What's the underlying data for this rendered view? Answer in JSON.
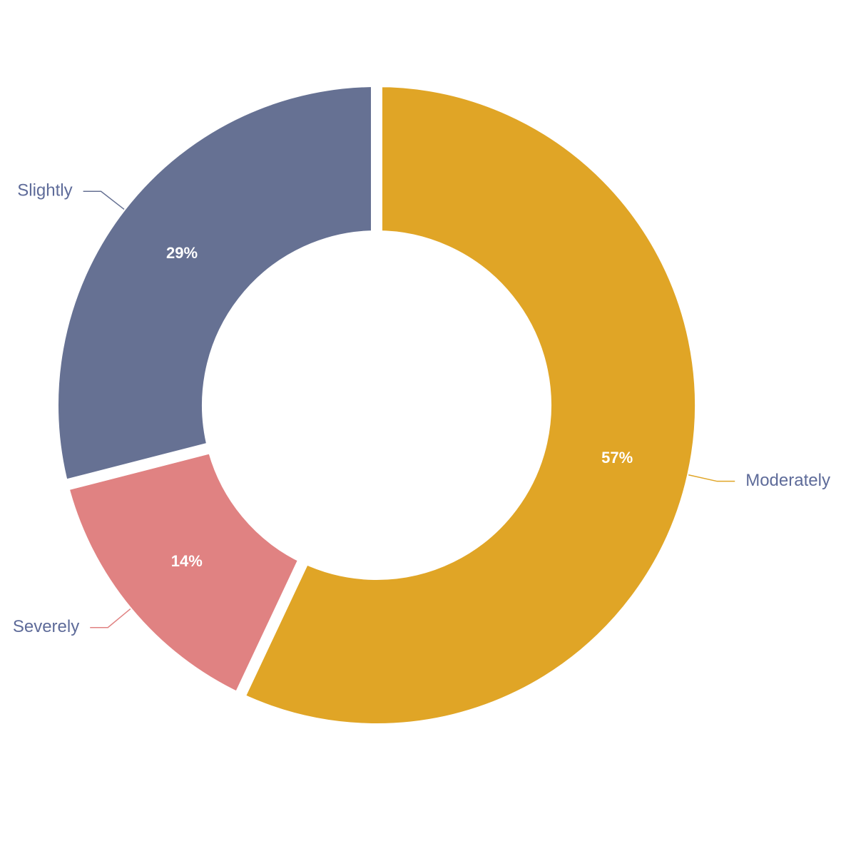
{
  "chart_data": {
    "type": "donut",
    "categories": [
      "Moderately",
      "Severely",
      "Slightly"
    ],
    "values": [
      57,
      14,
      29
    ],
    "value_labels": [
      "57%",
      "14%",
      "29%"
    ],
    "colors": [
      "#e0a526",
      "#e08282",
      "#667193"
    ]
  }
}
